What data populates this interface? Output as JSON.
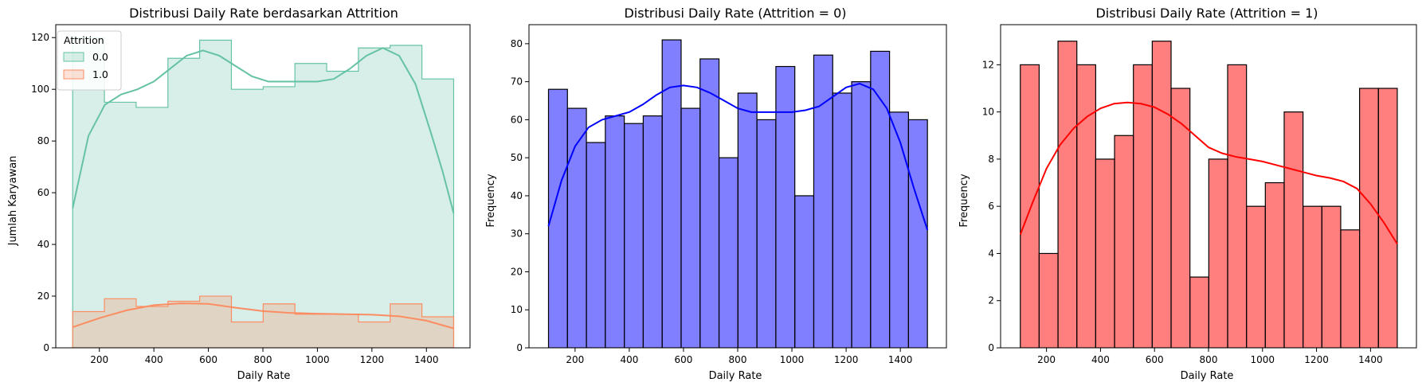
{
  "chart_data": [
    {
      "type": "histogram",
      "style": "step-overlay-with-kde",
      "title": "Distribusi Daily Rate berdasarkan Attrition",
      "xlabel": "Daily Rate",
      "ylabel": "Jumlah Karyawan",
      "xlim": [
        40,
        1560
      ],
      "ylim": [
        0,
        125
      ],
      "xticks": [
        200,
        400,
        600,
        800,
        1000,
        1200,
        1400
      ],
      "yticks": [
        0,
        20,
        40,
        60,
        80,
        100,
        120
      ],
      "legend": {
        "title": "Attrition",
        "position": "top-left"
      },
      "series": [
        {
          "name": "0.0",
          "color": "#66c2a5",
          "bin_edges": [
            102,
            218.5,
            335,
            451.5,
            568,
            684.5,
            801,
            917.5,
            1034,
            1150.5,
            1267,
            1383.5,
            1500
          ],
          "values": [
            120,
            95,
            93,
            112,
            119,
            100,
            101,
            110,
            107,
            116,
            117,
            104
          ],
          "kde_x": [
            102,
            160,
            220,
            280,
            340,
            400,
            460,
            520,
            580,
            640,
            700,
            760,
            820,
            880,
            940,
            1000,
            1060,
            1120,
            1180,
            1240,
            1300,
            1360,
            1420,
            1460,
            1500
          ],
          "kde_y": [
            54,
            82,
            94,
            98,
            100,
            103,
            108,
            113,
            115,
            113,
            109,
            105,
            103,
            103,
            103,
            103,
            104,
            108,
            113,
            116,
            113,
            102,
            82,
            68,
            52
          ]
        },
        {
          "name": "1.0",
          "color": "#fc8d62",
          "bin_edges": [
            102,
            218.5,
            335,
            451.5,
            568,
            684.5,
            801,
            917.5,
            1034,
            1150.5,
            1267,
            1383.5,
            1500
          ],
          "values": [
            14,
            19,
            16,
            18,
            20,
            10,
            17,
            13,
            13,
            10,
            17,
            12
          ],
          "kde_x": [
            102,
            200,
            300,
            400,
            500,
            600,
            700,
            800,
            900,
            1000,
            1100,
            1200,
            1300,
            1400,
            1500
          ],
          "kde_y": [
            8,
            11.5,
            14.5,
            16.5,
            17.2,
            17,
            15.5,
            14.2,
            13.5,
            13.2,
            13,
            12.8,
            12.2,
            10.5,
            7.5
          ]
        }
      ]
    },
    {
      "type": "histogram",
      "style": "bars-with-kde",
      "title": "Distribusi Daily Rate (Attrition = 0)",
      "xlabel": "Daily Rate",
      "ylabel": "Frequency",
      "xlim": [
        30,
        1570
      ],
      "ylim": [
        0,
        85
      ],
      "xticks": [
        200,
        400,
        600,
        800,
        1000,
        1200,
        1400
      ],
      "yticks": [
        0,
        10,
        20,
        30,
        40,
        50,
        60,
        70,
        80
      ],
      "color": "#0000ff",
      "bin_edges": [
        102,
        171.9,
        241.8,
        311.7,
        381.6,
        451.5,
        521.4,
        591.3,
        661.2,
        731.1,
        801,
        870.9,
        940.8,
        1010.7,
        1080.6,
        1150.5,
        1220.4,
        1290.3,
        1360.2,
        1430.1,
        1500
      ],
      "values": [
        68,
        63,
        54,
        61,
        59,
        61,
        81,
        63,
        76,
        50,
        67,
        60,
        74,
        40,
        77,
        67,
        70,
        78,
        62,
        60
      ],
      "kde_x": [
        102,
        150,
        200,
        250,
        300,
        350,
        400,
        450,
        500,
        550,
        600,
        650,
        700,
        750,
        800,
        850,
        900,
        950,
        1000,
        1050,
        1100,
        1150,
        1200,
        1250,
        1300,
        1350,
        1400,
        1450,
        1500
      ],
      "kde_y": [
        32,
        44,
        53,
        58,
        60,
        61,
        62,
        64,
        66.5,
        68.5,
        69,
        68.5,
        67,
        65,
        63,
        62,
        62,
        62,
        62,
        62.5,
        63.5,
        66,
        68.5,
        69.5,
        68,
        63,
        54,
        42,
        31
      ]
    },
    {
      "type": "histogram",
      "style": "bars-with-kde",
      "title": "Distribusi Daily Rate (Attrition = 1)",
      "xlabel": "Daily Rate",
      "ylabel": "Frequency",
      "xlim": [
        30,
        1570
      ],
      "ylim": [
        0,
        13.7
      ],
      "xticks": [
        200,
        400,
        600,
        800,
        1000,
        1200,
        1400
      ],
      "yticks": [
        0,
        2,
        4,
        6,
        8,
        10,
        12
      ],
      "color": "#ff0000",
      "bin_edges": [
        103,
        172.8,
        242.6,
        312.4,
        382.2,
        452,
        521.8,
        591.6,
        661.4,
        731.2,
        801,
        870.8,
        940.6,
        1010.4,
        1080.2,
        1150,
        1219.8,
        1289.6,
        1359.4,
        1429.2,
        1499
      ],
      "values": [
        12,
        4,
        13,
        12,
        8,
        9,
        12,
        13,
        11,
        3,
        8,
        12,
        6,
        7,
        10,
        6,
        6,
        5,
        11,
        11
      ],
      "kde_x": [
        103,
        150,
        200,
        250,
        300,
        350,
        400,
        450,
        500,
        550,
        600,
        650,
        700,
        750,
        800,
        850,
        900,
        950,
        1000,
        1050,
        1100,
        1150,
        1200,
        1250,
        1300,
        1350,
        1400,
        1450,
        1499
      ],
      "kde_y": [
        4.8,
        6.2,
        7.6,
        8.6,
        9.3,
        9.8,
        10.15,
        10.35,
        10.4,
        10.35,
        10.2,
        9.9,
        9.5,
        9,
        8.5,
        8.25,
        8.1,
        8,
        7.9,
        7.75,
        7.6,
        7.45,
        7.3,
        7.2,
        7.05,
        6.75,
        6.1,
        5.3,
        4.4
      ]
    }
  ]
}
